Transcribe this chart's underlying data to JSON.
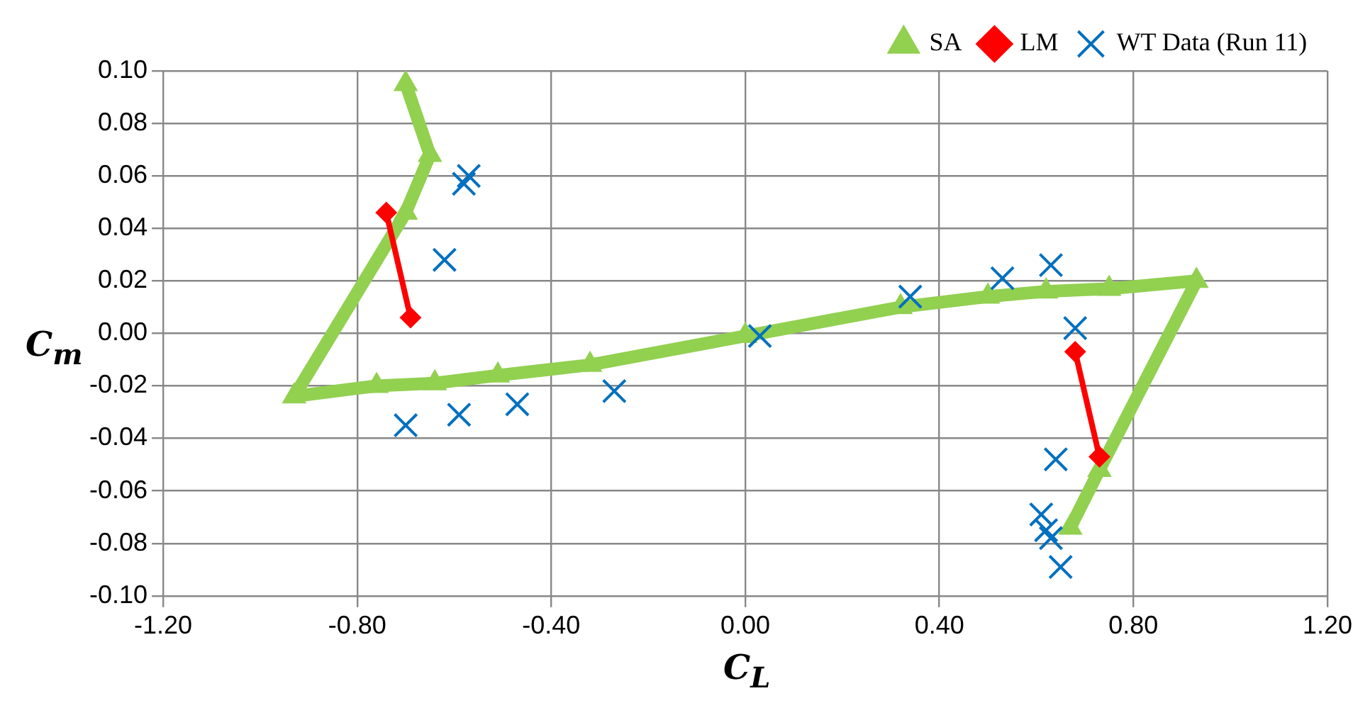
{
  "chart_data": {
    "type": "scatter",
    "xlabel": "C$_{L}$",
    "ylabel": "C$_{m}$",
    "xlim": [
      -1.2,
      1.2
    ],
    "xticks": [
      {
        "value": -1.2,
        "label": "-1.20"
      },
      {
        "value": -0.8,
        "label": "-0.80"
      },
      {
        "value": -0.4,
        "label": "-0.40"
      },
      {
        "value": 0,
        "label": "0.00"
      },
      {
        "value": 0.4,
        "label": "0.40"
      },
      {
        "value": 0.8,
        "label": "0.80"
      },
      {
        "value": 1.2,
        "label": "1.20"
      }
    ],
    "ylim": [
      -0.1,
      0.1
    ],
    "yticks": [
      {
        "value": -0.1,
        "label": "-0.10"
      },
      {
        "value": -0.08,
        "label": "-0.08"
      },
      {
        "value": -0.06,
        "label": "-0.06"
      },
      {
        "value": -0.04,
        "label": "-0.04"
      },
      {
        "value": -0.02,
        "label": "-0.02"
      },
      {
        "value": 0,
        "label": "0.00"
      },
      {
        "value": 0.02,
        "label": "0.02"
      },
      {
        "value": 0.04,
        "label": "0.04"
      },
      {
        "value": 0.06,
        "label": "0.06"
      },
      {
        "value": 0.08,
        "label": "0.08"
      },
      {
        "value": 0.1,
        "label": "0.10"
      }
    ],
    "grid": true,
    "legend": "top right",
    "series": [
      {
        "name": "SA",
        "type": "line",
        "marker": "triangle",
        "color": "#92d050",
        "x": [
          -0.7,
          -0.65,
          -0.7,
          -0.93,
          -0.76,
          -0.64,
          -0.51,
          -0.32,
          0.0,
          0.32,
          0.5,
          0.62,
          0.75,
          0.93,
          0.73,
          0.67
        ],
        "values": [
          0.095,
          0.068,
          0.046,
          -0.024,
          -0.02,
          -0.019,
          -0.016,
          -0.012,
          -0.001,
          0.01,
          0.014,
          0.016,
          0.017,
          0.02,
          -0.052,
          -0.074
        ]
      },
      {
        "name": "LM",
        "type": "line",
        "marker": "diamond",
        "color": "#ff0000",
        "x": [
          -0.74,
          -0.69,
          null,
          0.68,
          0.73
        ],
        "values": [
          0.046,
          0.006,
          null,
          -0.007,
          -0.047
        ]
      },
      {
        "name": "WT Data (Run 11)",
        "type": "scatter",
        "marker": "cross",
        "color": "#0070c0",
        "x": [
          -0.57,
          -0.58,
          -0.62,
          -0.7,
          -0.59,
          -0.47,
          -0.27,
          0.03,
          0.34,
          0.53,
          0.63,
          0.68,
          0.64,
          0.61,
          0.62,
          0.63,
          0.65
        ],
        "values": [
          0.06,
          0.057,
          0.028,
          -0.035,
          -0.031,
          -0.027,
          -0.022,
          -0.001,
          0.014,
          0.021,
          0.026,
          0.002,
          -0.048,
          -0.069,
          -0.075,
          -0.078,
          -0.089
        ]
      }
    ]
  }
}
